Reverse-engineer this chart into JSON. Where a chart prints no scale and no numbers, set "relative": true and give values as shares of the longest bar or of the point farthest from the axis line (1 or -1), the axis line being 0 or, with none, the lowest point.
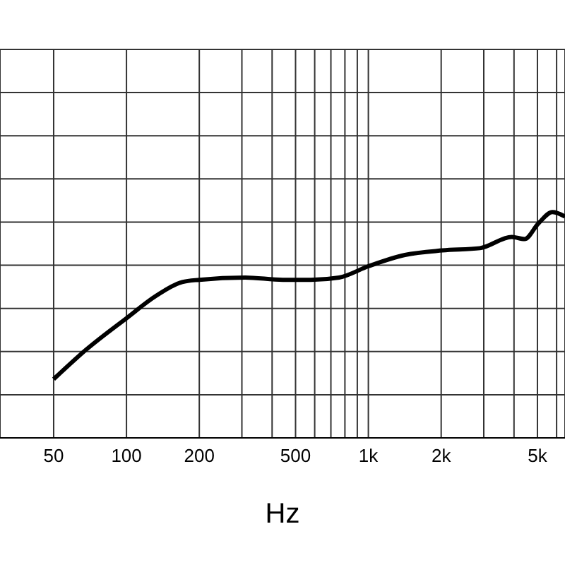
{
  "chart_data": {
    "type": "line",
    "xlabel": "Hz",
    "relative": true,
    "log": "x",
    "grid": true,
    "marker": "none",
    "line_style": "solid",
    "xlim": [
      30,
      6500
    ],
    "xticks": [
      50,
      100,
      200,
      {
        "value": 300,
        "label": null
      },
      {
        "value": 400,
        "label": null
      },
      500,
      {
        "value": 600,
        "label": null
      },
      {
        "value": 700,
        "label": null
      },
      {
        "value": 800,
        "label": null
      },
      {
        "value": 900,
        "label": null
      },
      {
        "value": 1000,
        "label": "1k"
      },
      {
        "value": 2000,
        "label": "2k"
      },
      {
        "value": 3000,
        "label": null
      },
      {
        "value": 4000,
        "label": null
      },
      {
        "value": 5000,
        "label": "5k"
      },
      {
        "value": 6000,
        "label": null
      }
    ],
    "x": [
      50,
      68,
      100,
      133,
      170,
      200,
      310,
      443,
      579,
      757,
      1000,
      1416,
      2024,
      2892,
      3918,
      4419,
      5050,
      5771,
      6500
    ],
    "series": [
      {
        "color": "#000000",
        "values": [
          0.26,
          0.39,
          0.53,
          0.63,
          0.69,
          0.7,
          0.71,
          0.7,
          0.7,
          0.71,
          0.76,
          0.81,
          0.83,
          0.84,
          0.89,
          0.88,
          0.95,
          1,
          0.98
        ]
      }
    ]
  }
}
